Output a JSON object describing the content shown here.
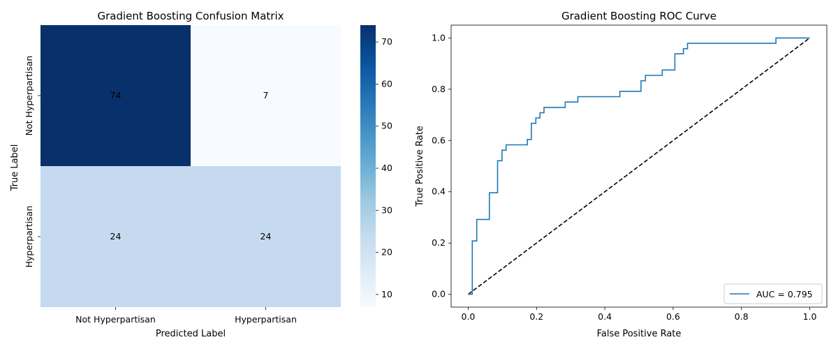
{
  "chart_data": [
    {
      "type": "heatmap",
      "title": "Gradient Boosting Confusion Matrix",
      "xlabel": "Predicted Label",
      "ylabel": "True Label",
      "x_categories": [
        "Not Hyperpartisan",
        "Hyperpartisan"
      ],
      "y_categories": [
        "Not Hyperpartisan",
        "Hyperpartisan"
      ],
      "values": [
        [
          74,
          7
        ],
        [
          24,
          24
        ]
      ],
      "colormap": "Blues",
      "colorbar": {
        "min": 7,
        "max": 74,
        "ticks": [
          10,
          20,
          30,
          40,
          50,
          60,
          70
        ]
      }
    },
    {
      "type": "line",
      "title": "Gradient Boosting ROC Curve",
      "xlabel": "False Positive Rate",
      "ylabel": "True Positive Rate",
      "xlim": [
        -0.05,
        1.05
      ],
      "ylim": [
        -0.05,
        1.05
      ],
      "xticks": [
        "0.0",
        "0.2",
        "0.4",
        "0.6",
        "0.8",
        "1.0"
      ],
      "yticks": [
        "0.0",
        "0.2",
        "0.4",
        "0.6",
        "0.8",
        "1.0"
      ],
      "legend_position": "lower-right",
      "grid": false,
      "series": [
        {
          "name": "AUC = 0.795",
          "color": "#1f77b4",
          "style": "solid",
          "x": [
            0,
            0.012,
            0.012,
            0.025,
            0.025,
            0.062,
            0.062,
            0.086,
            0.086,
            0.099,
            0.099,
            0.111,
            0.111,
            0.173,
            0.173,
            0.185,
            0.185,
            0.198,
            0.198,
            0.21,
            0.21,
            0.222,
            0.222,
            0.284,
            0.284,
            0.321,
            0.321,
            0.444,
            0.444,
            0.506,
            0.506,
            0.519,
            0.519,
            0.568,
            0.568,
            0.605,
            0.605,
            0.63,
            0.63,
            0.642,
            0.642,
            0.901,
            0.901,
            1.0
          ],
          "y": [
            0,
            0,
            0.208,
            0.208,
            0.292,
            0.292,
            0.396,
            0.396,
            0.521,
            0.521,
            0.562,
            0.562,
            0.583,
            0.583,
            0.604,
            0.604,
            0.667,
            0.667,
            0.688,
            0.688,
            0.708,
            0.708,
            0.729,
            0.729,
            0.75,
            0.75,
            0.771,
            0.771,
            0.792,
            0.792,
            0.833,
            0.833,
            0.854,
            0.854,
            0.875,
            0.875,
            0.938,
            0.938,
            0.958,
            0.958,
            0.979,
            0.979,
            1.0,
            1.0
          ]
        },
        {
          "name": "",
          "color": "#000000",
          "style": "dashed",
          "x": [
            0,
            1
          ],
          "y": [
            0,
            1
          ]
        }
      ]
    }
  ]
}
